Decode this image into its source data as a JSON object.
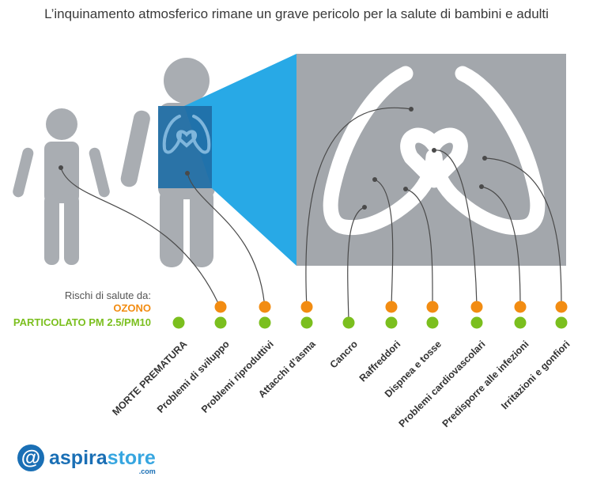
{
  "title": "L’inquinamento atmosferico rimane un grave pericolo per la salute di bambini e adulti",
  "legend": {
    "heading": "Rischi di salute da:",
    "ozone_label": "OZONO",
    "pm_label": "PARTICOLATO PM 2.5/PM10",
    "ozone_color": "#f28c12",
    "pm_color": "#7bbf1e"
  },
  "colors": {
    "figure_gray": "#a9adb2",
    "lung_panel": "#a3a7ac",
    "lung_outline": "#ffffff",
    "xray_blue": "#28a9e6",
    "xray_dark": "#1f6ea6",
    "connector": "#4a4a4a"
  },
  "risks": [
    {
      "label": "MORTE PREMATURA",
      "ozone": false,
      "pm": true
    },
    {
      "label": "Problemi di sviluppo",
      "ozone": true,
      "pm": true
    },
    {
      "label": "Problemi riproduttivi",
      "ozone": true,
      "pm": true
    },
    {
      "label": "Attacchi d’asma",
      "ozone": true,
      "pm": true
    },
    {
      "label": "Cancro",
      "ozone": false,
      "pm": true
    },
    {
      "label": "Raffreddori",
      "ozone": true,
      "pm": true
    },
    {
      "label": "Dispnea e tosse",
      "ozone": true,
      "pm": true
    },
    {
      "label": "Problemi cardiovascolari",
      "ozone": true,
      "pm": true
    },
    {
      "label": "Predisporre alle infezioni",
      "ozone": true,
      "pm": true
    },
    {
      "label": "Irritazioni e gonfiori",
      "ozone": true,
      "pm": true
    }
  ],
  "brand": {
    "symbol": "@",
    "name_part1": "aspira",
    "name_part2": "store",
    "domain": ".com"
  }
}
